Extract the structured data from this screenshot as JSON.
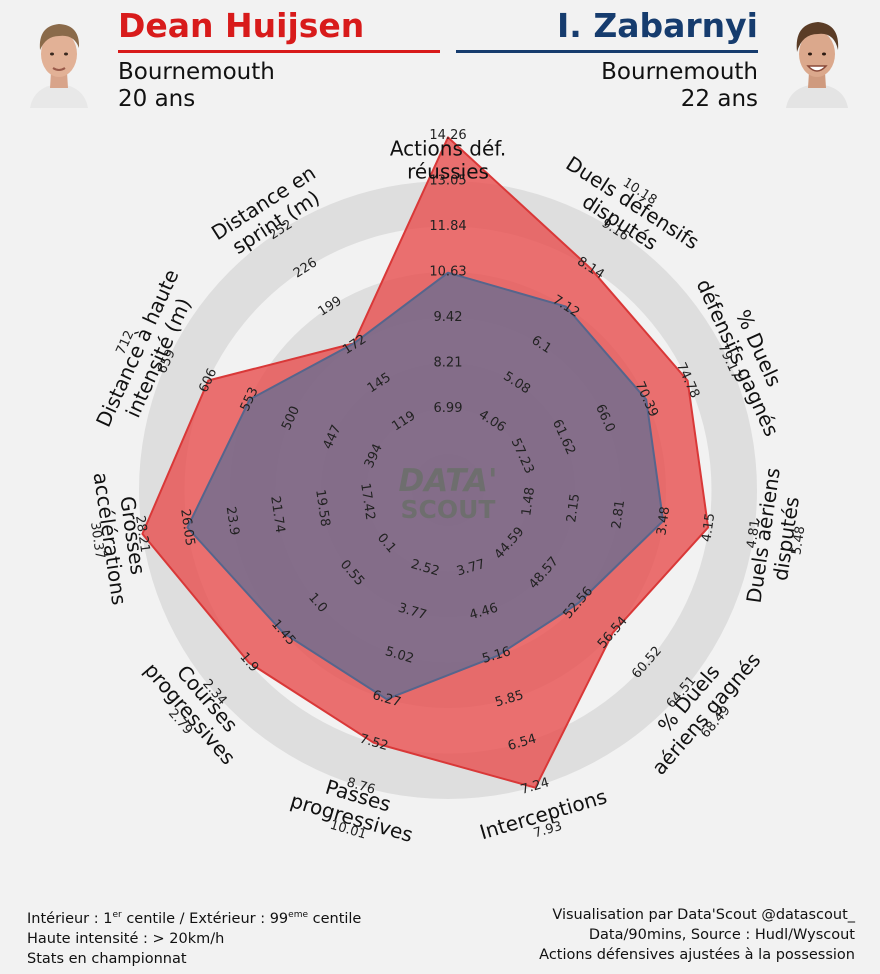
{
  "players": {
    "left": {
      "name": "Dean Huijsen",
      "club": "Bournemouth",
      "age": "20 ans",
      "color": "#d81b1b"
    },
    "right": {
      "name": "I. Zabarnyi",
      "club": "Bournemouth",
      "age": "22 ans",
      "color": "#163c6e"
    }
  },
  "logo": {
    "line1": "DATA'",
    "line2": "SCOUT"
  },
  "footer": {
    "left_line1_a": "Intérieur : 1",
    "left_line1_sup1": "er",
    "left_line1_b": " centile / Extérieur : 99",
    "left_line1_sup2": "eme",
    "left_line1_c": " centile",
    "left_line2": "Haute intensité : > 20km/h",
    "left_line3": "Stats en championnat",
    "right_line1": "Visualisation par Data'Scout @datascout_",
    "right_line2": "Data/90mins, Source : Hudl/Wyscout",
    "right_line3": "Actions défensives ajustées à la possession"
  },
  "chart_data": {
    "type": "radar",
    "axes": [
      {
        "label": [
          "Actions déf.",
          "réussies"
        ],
        "ticks": [
          "6.99",
          "8.21",
          "9.42",
          "10.63",
          "11.84",
          "13.05",
          "14.26"
        ]
      },
      {
        "label": [
          "Duels défensifs",
          "disputés"
        ],
        "ticks": [
          "4.06",
          "5.08",
          "6.1",
          "7.12",
          "8.14",
          "9.16",
          "10.18"
        ]
      },
      {
        "label": [
          "% Duels",
          "défensifs gagnés"
        ],
        "ticks": [
          "57.23",
          "61.62",
          "66.0",
          "70.39",
          "74.78",
          "79.17"
        ]
      },
      {
        "label": [
          "Duels aériens",
          "disputés"
        ],
        "ticks": [
          "1.48",
          "2.15",
          "2.81",
          "3.48",
          "4.15",
          "4.81",
          "5.48"
        ]
      },
      {
        "label": [
          "% Duels",
          "aériens gagnés"
        ],
        "ticks": [
          "44.59",
          "48.57",
          "52.56",
          "56.54",
          "60.52",
          "64.51",
          "68.49"
        ]
      },
      {
        "label": [
          "Interceptions"
        ],
        "ticks": [
          "3.77",
          "4.46",
          "5.16",
          "5.85",
          "6.54",
          "7.24",
          "7.93"
        ]
      },
      {
        "label": [
          "Passes",
          "progressives"
        ],
        "ticks": [
          "2.52",
          "3.77",
          "5.02",
          "6.27",
          "7.52",
          "8.76",
          "10.01"
        ]
      },
      {
        "label": [
          "Courses",
          "progressives"
        ],
        "ticks": [
          "0.1",
          "0.55",
          "1.0",
          "1.45",
          "1.9",
          "2.34",
          "2.79"
        ]
      },
      {
        "label": [
          "Grosses",
          "accélérations"
        ],
        "ticks": [
          "17.42",
          "19.58",
          "21.74",
          "23.9",
          "26.05",
          "28.21",
          "30.37"
        ]
      },
      {
        "label": [
          "Distance à haute",
          "intensité (m)"
        ],
        "ticks": [
          "394",
          "447",
          "500",
          "553",
          "606",
          "659",
          "712"
        ]
      },
      {
        "label": [
          "Distance en",
          "sprint (m)"
        ],
        "ticks": [
          "119",
          "145",
          "172",
          "199",
          "226",
          "252"
        ]
      }
    ],
    "series": [
      {
        "name": "Dean Huijsen",
        "color": "#e84a4a",
        "values": [
          14.26,
          8.14,
          74.78,
          4.15,
          56.54,
          7.24,
          7.52,
          1.9,
          28.21,
          606,
          172
        ]
      },
      {
        "name": "I. Zabarnyi",
        "color": "#5e6d94",
        "values": [
          10.63,
          7.12,
          70.39,
          3.48,
          52.56,
          5.16,
          6.27,
          1.45,
          26.05,
          553,
          172
        ]
      }
    ]
  }
}
